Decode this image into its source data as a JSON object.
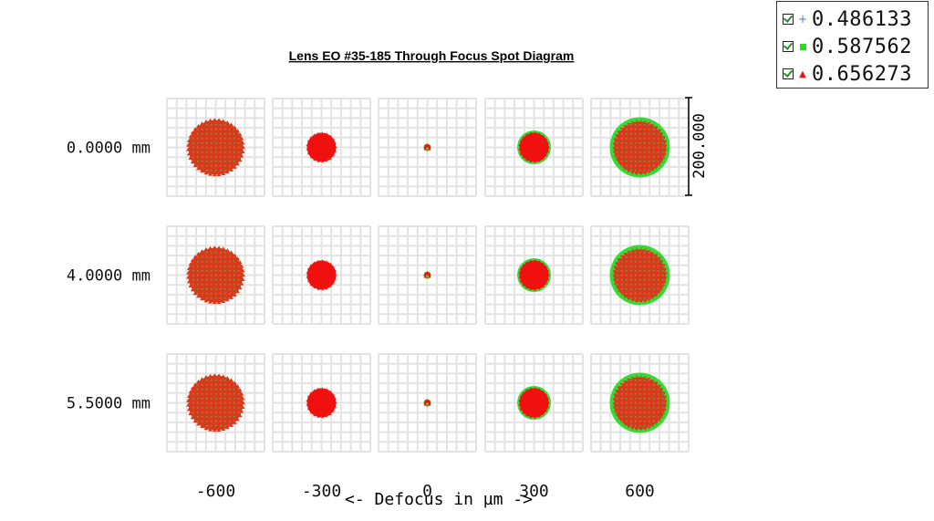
{
  "chart_data": {
    "type": "scatter",
    "title": "Lens EO #35-185 Through Focus Spot Diagram",
    "xlabel": "<- Defocus in µm ->",
    "defocus_values": [
      "-600",
      "-300",
      "0",
      "300",
      "600"
    ],
    "field_labels": [
      "0.0000 mm",
      "4.0000 mm",
      "5.5000 mm"
    ],
    "scale_bar_label": "200.000",
    "grid": true,
    "legend_placement": "top-right",
    "series": [
      {
        "name": "0.486133",
        "marker": "plus",
        "color": "#5b6fd6"
      },
      {
        "name": "0.587562",
        "marker": "square",
        "color": "#22e022"
      },
      {
        "name": "0.656273",
        "marker": "triangle",
        "color": "#ee1111"
      }
    ],
    "spots": [
      [
        {
          "r": 30,
          "green": 0
        },
        {
          "r": 16,
          "green": 0
        },
        {
          "r": 3,
          "green": 1
        },
        {
          "r": 16,
          "green": 2.5
        },
        {
          "r": 30,
          "green": 3
        }
      ],
      [
        {
          "r": 30,
          "green": 0
        },
        {
          "r": 16,
          "green": 0
        },
        {
          "r": 3,
          "green": 1
        },
        {
          "r": 16,
          "green": 2.5
        },
        {
          "r": 30,
          "green": 3
        }
      ],
      [
        {
          "r": 30,
          "green": 0
        },
        {
          "r": 16,
          "green": 0
        },
        {
          "r": 3,
          "green": 1
        },
        {
          "r": 16,
          "green": 2.5
        },
        {
          "r": 30,
          "green": 3
        }
      ]
    ]
  }
}
